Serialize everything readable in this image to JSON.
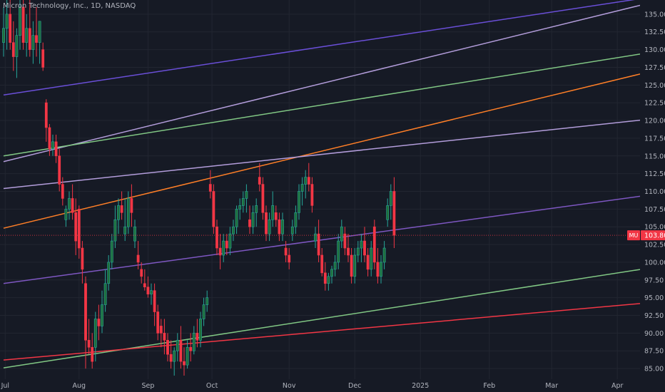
{
  "header": {
    "title": "Micron Technology, Inc., 1D, NASDAQ"
  },
  "colors": {
    "background": "#161a25",
    "grid": "#222631",
    "up": "#26a69a",
    "up_body": "#1f6f3a",
    "down": "#f23645",
    "axis_text": "#b2b5be",
    "price_line": "#f23645"
  },
  "chart_data": {
    "type": "candlestick",
    "ylim": [
      83.5,
      137.0
    ],
    "y_ticks": [
      85.0,
      87.5,
      90.0,
      92.5,
      95.0,
      97.5,
      100.0,
      102.5,
      105.0,
      107.5,
      110.0,
      112.5,
      115.0,
      117.5,
      120.0,
      122.5,
      125.0,
      127.5,
      130.0,
      132.5,
      135.0
    ],
    "y_tick_labels": [
      "85.00",
      "87.50",
      "90.00",
      "92.50",
      "95.00",
      "97.50",
      "100.00",
      "102.50",
      "105.00",
      "107.50",
      "110.00",
      "112.50",
      "115.00",
      "117.50",
      "120.00",
      "122.50",
      "125.00",
      "127.50",
      "130.00",
      "132.50",
      "135.00"
    ],
    "x_ticks": [
      {
        "label": "Jul",
        "bar": 0.5
      },
      {
        "label": "Aug",
        "bar": 23
      },
      {
        "label": "Sep",
        "bar": 44
      },
      {
        "label": "Oct",
        "bar": 63.5
      },
      {
        "label": "Nov",
        "bar": 87
      },
      {
        "label": "Dec",
        "bar": 107
      },
      {
        "label": "2025",
        "bar": 127
      },
      {
        "label": "Feb",
        "bar": 148
      },
      {
        "label": "Mar",
        "bar": 167
      },
      {
        "label": "Apr",
        "bar": 187
      }
    ],
    "last_price": {
      "value": 103.8,
      "label": "103.80",
      "symbol": "MU"
    },
    "bars": [
      [
        131,
        136,
        129,
        133
      ],
      [
        133,
        137,
        130,
        135
      ],
      [
        135,
        137,
        130,
        131
      ],
      [
        131,
        134,
        127,
        129
      ],
      [
        129,
        133,
        126,
        132
      ],
      [
        132,
        137,
        130,
        136
      ],
      [
        136,
        137,
        130,
        131
      ],
      [
        131,
        135,
        129,
        133
      ],
      [
        133,
        137,
        129,
        130
      ],
      [
        130,
        134,
        128,
        132
      ],
      [
        132,
        136,
        129,
        131
      ],
      [
        131,
        133,
        128,
        134
      ],
      [
        130,
        131,
        127,
        127.5
      ],
      [
        122.5,
        123,
        117,
        119
      ],
      [
        119,
        119.5,
        115,
        116
      ],
      [
        116,
        118,
        115,
        117
      ],
      [
        117,
        118,
        114,
        115
      ],
      [
        115,
        116,
        110,
        111
      ],
      [
        111,
        112,
        108,
        109
      ],
      [
        106,
        108,
        105,
        107.5
      ],
      [
        107.5,
        110,
        106,
        109
      ],
      [
        109,
        111,
        106,
        107
      ],
      [
        107,
        109,
        101,
        103
      ],
      [
        107.5,
        108,
        100.5,
        102
      ],
      [
        102,
        103,
        97,
        99
      ],
      [
        97,
        98,
        85,
        89
      ],
      [
        89,
        92,
        87,
        88
      ],
      [
        88,
        90,
        85,
        86
      ],
      [
        88,
        93,
        86,
        92
      ],
      [
        92,
        94,
        89,
        91
      ],
      [
        91,
        96,
        90,
        94
      ],
      [
        94,
        99,
        93,
        97
      ],
      [
        97,
        101,
        96,
        100
      ],
      [
        100,
        104,
        99,
        103
      ],
      [
        103,
        108,
        102,
        106
      ],
      [
        106,
        109,
        104,
        108
      ],
      [
        108,
        110,
        106,
        107
      ],
      [
        104,
        109,
        103,
        105
      ],
      [
        105,
        110,
        104,
        109
      ],
      [
        109,
        111,
        105,
        107
      ],
      [
        103,
        106,
        102,
        105
      ],
      [
        101,
        103,
        99,
        100
      ],
      [
        99,
        100,
        97,
        98
      ],
      [
        97,
        99,
        96,
        96.5
      ],
      [
        96.5,
        98,
        95,
        95.5
      ],
      [
        95.5,
        97,
        94,
        96
      ],
      [
        96,
        97,
        91,
        93
      ],
      [
        93,
        94,
        89,
        90
      ],
      [
        91,
        92,
        88,
        90
      ],
      [
        90,
        92,
        87,
        89
      ],
      [
        89,
        90,
        86,
        87
      ],
      [
        87,
        89,
        85,
        86
      ],
      [
        86,
        88,
        84,
        87.5
      ],
      [
        87.5,
        90,
        86,
        89
      ],
      [
        89,
        91,
        85,
        86
      ],
      [
        86,
        88,
        84,
        85.5
      ],
      [
        85.5,
        89,
        85,
        88
      ],
      [
        88,
        90,
        86,
        87.5
      ],
      [
        87.5,
        91,
        87,
        90
      ],
      [
        90,
        92,
        88,
        89
      ],
      [
        89,
        93,
        88,
        92
      ],
      [
        92,
        95,
        91,
        94
      ],
      [
        94,
        96,
        93,
        95
      ],
      [
        111,
        113,
        109,
        110
      ],
      [
        110,
        111,
        104,
        105
      ],
      [
        105,
        106,
        101,
        102
      ],
      [
        102,
        104,
        99,
        101
      ],
      [
        101,
        104,
        100,
        103
      ],
      [
        103,
        104,
        101,
        102
      ],
      [
        102,
        105,
        101,
        104
      ],
      [
        104,
        106,
        103,
        105
      ],
      [
        105,
        108,
        104,
        107.5
      ],
      [
        107.5,
        109,
        106,
        108
      ],
      [
        108,
        110,
        107,
        109
      ],
      [
        109,
        111,
        107,
        110
      ],
      [
        106,
        108,
        104,
        105
      ],
      [
        105,
        108,
        104,
        107
      ],
      [
        107,
        109,
        105,
        108
      ],
      [
        112,
        114,
        110,
        111
      ],
      [
        111,
        112,
        106,
        107
      ],
      [
        107,
        108,
        103,
        104
      ],
      [
        104,
        107,
        103,
        106
      ],
      [
        106,
        110,
        105,
        108
      ],
      [
        107,
        108,
        105,
        106
      ],
      [
        106,
        107,
        103,
        104
      ],
      [
        104,
        107,
        103,
        106
      ],
      [
        102,
        103,
        100,
        101
      ],
      [
        101,
        102,
        99,
        100
      ],
      [
        104,
        106,
        103,
        105
      ],
      [
        105,
        108,
        104,
        107
      ],
      [
        107,
        111,
        106,
        110
      ],
      [
        110,
        112,
        108,
        111
      ],
      [
        111,
        113,
        109,
        112
      ],
      [
        112,
        114,
        110,
        111
      ],
      [
        111,
        112,
        107,
        108
      ],
      [
        103,
        105,
        102,
        104
      ],
      [
        104,
        106,
        100,
        101
      ],
      [
        101,
        102,
        98,
        98.5
      ],
      [
        98.5,
        100,
        96,
        97
      ],
      [
        97,
        98.5,
        96,
        98
      ],
      [
        98,
        99.5,
        97,
        99
      ],
      [
        99,
        101,
        98,
        100
      ],
      [
        100,
        104,
        99,
        103
      ],
      [
        103,
        106,
        102,
        105
      ],
      [
        104,
        105,
        101,
        102
      ],
      [
        102,
        104,
        100,
        101
      ],
      [
        101,
        102,
        97,
        98
      ],
      [
        98,
        102,
        97,
        101
      ],
      [
        101,
        103,
        100,
        102
      ],
      [
        102,
        104,
        100,
        103
      ],
      [
        103,
        105,
        100,
        101
      ],
      [
        101,
        102,
        98,
        99
      ],
      [
        99,
        103,
        98,
        102
      ],
      [
        105,
        106,
        99,
        100
      ],
      [
        100,
        102,
        97,
        98
      ],
      [
        98,
        101,
        97,
        100
      ],
      [
        100,
        103,
        99,
        102
      ],
      [
        106,
        109,
        105,
        108
      ],
      [
        108,
        111,
        106,
        110
      ],
      [
        110,
        112,
        102,
        103.8
      ]
    ],
    "trendlines": [
      {
        "color": "#6a4fd8",
        "from": [
          0,
          123.6
        ],
        "to": [
          197,
          137.4
        ]
      },
      {
        "color": "#b39ddb",
        "from": [
          0,
          114.2
        ],
        "to": [
          197,
          136.6
        ]
      },
      {
        "color": "#81c784",
        "from": [
          0,
          115.0
        ],
        "to": [
          197,
          129.6
        ]
      },
      {
        "color": "#ff7f27",
        "from": [
          0,
          104.8
        ],
        "to": [
          197,
          126.9
        ]
      },
      {
        "color": "#b39ddb",
        "from": [
          0,
          110.4
        ],
        "to": [
          197,
          120.2
        ]
      },
      {
        "color": "#7e57c2",
        "from": [
          0,
          97.0
        ],
        "to": [
          197,
          109.5
        ]
      },
      {
        "color": "#81c784",
        "from": [
          0,
          85.1
        ],
        "to": [
          197,
          99.2
        ]
      },
      {
        "color": "#f23645",
        "from": [
          0,
          86.2
        ],
        "to": [
          197,
          94.3
        ]
      }
    ]
  }
}
